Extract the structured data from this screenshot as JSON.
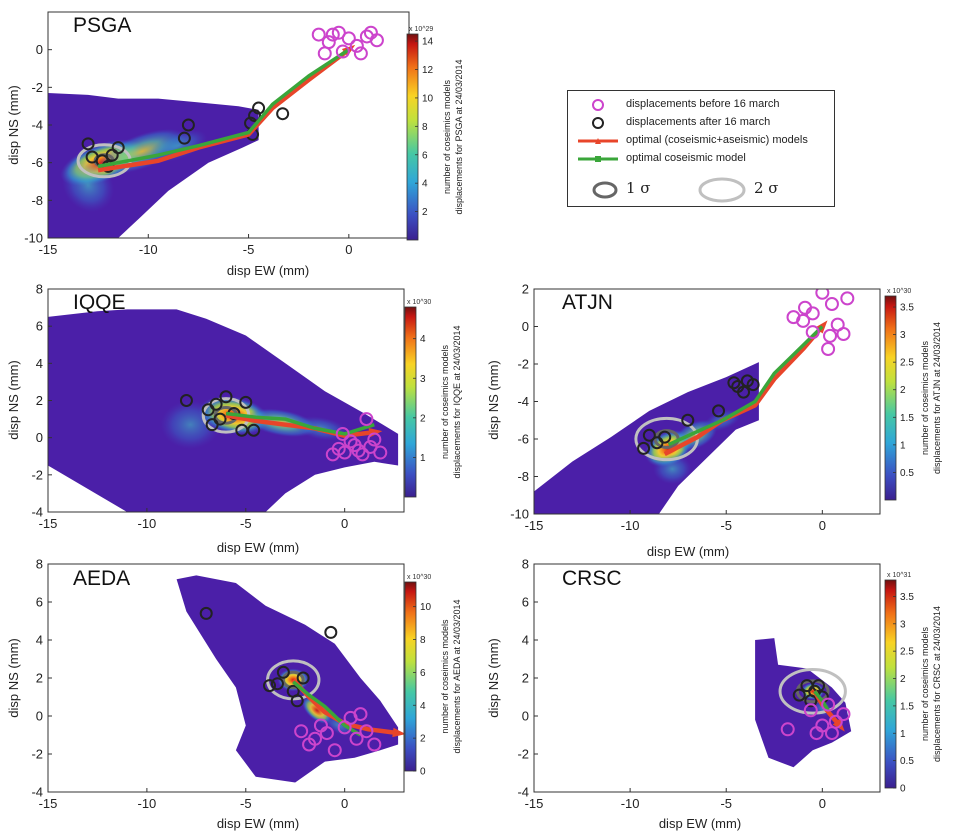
{
  "labels": {
    "xlabel": "disp EW (mm)",
    "ylabel": "disp NS (mm)",
    "cb_label_top": "number of coseimics models"
  },
  "legend": {
    "before": "displacements before 16 march",
    "after": "displacements after 16 march",
    "optimal_both": "optimal (coseismic+aseismic) models",
    "optimal_co": "optimal coseismic model",
    "sigma1": "1 σ",
    "sigma2": "2 σ"
  },
  "colors": {
    "before": "#cc44cc",
    "after": "#222222",
    "optimal_both": "#e8452a",
    "optimal_co": "#3aa63a",
    "sigma1": "#666666",
    "sigma2": "#c0c0c0",
    "density_low": "#4b1fa8"
  },
  "chart_data": [
    {
      "type": "heatmap",
      "station": "PSGA",
      "xlim": [
        -15,
        3
      ],
      "ylim": [
        -10,
        2
      ],
      "xticks": [
        -15,
        -10,
        -5,
        0
      ],
      "yticks": [
        -10,
        -8,
        -6,
        -4,
        -2,
        0
      ],
      "cb_ticks": [
        2,
        4,
        6,
        8,
        10,
        12,
        14
      ],
      "cb_max": 14.5,
      "cb_exp": "x 10^29",
      "cb_label_bottom": "displacements for PSGA at 24/03/2014",
      "before": [
        [
          -1.5,
          0.8
        ],
        [
          -1,
          0.4
        ],
        [
          -0.5,
          0.9
        ],
        [
          0,
          0.6
        ],
        [
          0.4,
          0.2
        ],
        [
          0.9,
          0.7
        ],
        [
          1.4,
          0.5
        ],
        [
          -1.2,
          -0.2
        ],
        [
          -0.3,
          -0.1
        ],
        [
          0.6,
          -0.2
        ],
        [
          1.1,
          0.9
        ],
        [
          -0.8,
          0.8
        ]
      ],
      "after": [
        [
          -12.8,
          -5.7
        ],
        [
          -12.3,
          -5.9
        ],
        [
          -11.8,
          -5.6
        ],
        [
          -13.0,
          -5.0
        ],
        [
          -11.5,
          -5.2
        ],
        [
          -12.0,
          -6.2
        ],
        [
          -8.0,
          -4.0
        ],
        [
          -8.2,
          -4.7
        ],
        [
          -4.7,
          -3.5
        ],
        [
          -4.9,
          -3.9
        ],
        [
          -4.5,
          -3.1
        ],
        [
          -4.8,
          -4.5
        ],
        [
          -3.3,
          -3.4
        ]
      ],
      "path_both": [
        [
          -12.5,
          -6.4
        ],
        [
          -9.5,
          -5.9
        ],
        [
          -7.5,
          -5.2
        ],
        [
          -5,
          -4.5
        ],
        [
          -3.8,
          -3.1
        ],
        [
          -2,
          -1.6
        ],
        [
          0,
          0
        ]
      ],
      "path_co": [
        [
          -12.5,
          -6.2
        ],
        [
          -9.5,
          -5.6
        ],
        [
          -7.5,
          -5.1
        ],
        [
          -5,
          -4.4
        ],
        [
          -3.8,
          -2.9
        ],
        [
          -2,
          -1.4
        ],
        [
          0,
          0
        ]
      ],
      "sigma_center": [
        -12.2,
        -5.9
      ],
      "sigma1": [
        0.45,
        0.32
      ],
      "sigma2": [
        1.3,
        0.85
      ],
      "density": [
        [
          -12.3,
          -6,
          2.2,
          1.0,
          1.0,
          20
        ],
        [
          -10.3,
          -5.4,
          2.3,
          0.9,
          0.6,
          20
        ],
        [
          -8.5,
          -5.1,
          1.5,
          0.7,
          0.3,
          20
        ],
        [
          -13,
          -7.2,
          1.2,
          1.5,
          0.4,
          40
        ]
      ],
      "support": [
        [
          -15,
          -2.3
        ],
        [
          -13,
          -2.4
        ],
        [
          -11.5,
          -2.6
        ],
        [
          -9.5,
          -2.6
        ],
        [
          -7.5,
          -2.8
        ],
        [
          -5.5,
          -3
        ],
        [
          -4.5,
          -3.2
        ],
        [
          -4.5,
          -4.8
        ],
        [
          -5.3,
          -5.2
        ],
        [
          -7,
          -6
        ],
        [
          -9,
          -7.5
        ],
        [
          -10.5,
          -9
        ],
        [
          -11.5,
          -10
        ],
        [
          -15,
          -10
        ]
      ]
    },
    {
      "type": "heatmap",
      "station": "IQQE",
      "xlim": [
        -15,
        3
      ],
      "ylim": [
        -4,
        8
      ],
      "xticks": [
        -15,
        -10,
        -5,
        0
      ],
      "yticks": [
        -4,
        -2,
        0,
        2,
        4,
        6,
        8
      ],
      "cb_ticks": [
        1,
        2,
        3,
        4
      ],
      "cb_max": 4.8,
      "cb_exp": "x 10^30",
      "cb_label_bottom": "displacements for IQQE at 24/03/2014",
      "before": [
        [
          -0.3,
          -0.6
        ],
        [
          0,
          -0.8
        ],
        [
          0.5,
          -0.4
        ],
        [
          0.9,
          -0.9
        ],
        [
          1.3,
          -0.5
        ],
        [
          1.8,
          -0.8
        ],
        [
          1.1,
          1.0
        ],
        [
          0.3,
          -0.2
        ],
        [
          -0.6,
          -0.9
        ],
        [
          1.5,
          -0.1
        ],
        [
          0.7,
          -0.7
        ],
        [
          -0.1,
          0.2
        ]
      ],
      "after": [
        [
          -8.0,
          2.0
        ],
        [
          -6.5,
          1.8
        ],
        [
          -6.0,
          2.2
        ],
        [
          -5.6,
          1.3
        ],
        [
          -6.7,
          0.7
        ],
        [
          -5.2,
          0.4
        ],
        [
          -4.6,
          0.4
        ],
        [
          -6.3,
          1.0
        ],
        [
          -6.9,
          1.5
        ],
        [
          -5.0,
          1.9
        ]
      ],
      "path_both": [
        [
          -6.0,
          1.2
        ],
        [
          -4.5,
          0.9
        ],
        [
          -3,
          0.7
        ],
        [
          -1.5,
          0.5
        ],
        [
          0,
          0.1
        ],
        [
          1.5,
          0.3
        ]
      ],
      "path_co": [
        [
          -6.0,
          1.3
        ],
        [
          -4.5,
          1.1
        ],
        [
          -3,
          1.0
        ],
        [
          -1.5,
          0.5
        ],
        [
          0,
          0.2
        ],
        [
          1.5,
          0.7
        ]
      ],
      "sigma_center": [
        -6.0,
        1.2
      ],
      "sigma1": [
        0.55,
        0.42
      ],
      "sigma2": [
        1.15,
        0.9
      ],
      "density": [
        [
          -5.6,
          1.2,
          1.8,
          1.0,
          1.0,
          -10
        ],
        [
          -3.2,
          0.8,
          1.8,
          0.7,
          0.7,
          -10
        ],
        [
          -1.2,
          0.5,
          1.4,
          0.6,
          0.35,
          -10
        ],
        [
          -7.8,
          0.7,
          1.5,
          1.3,
          0.25,
          0
        ]
      ],
      "support": [
        [
          -15,
          -0.5
        ],
        [
          -15,
          6.5
        ],
        [
          -12.5,
          6.8
        ],
        [
          -11,
          6.9
        ],
        [
          -8.5,
          6.9
        ],
        [
          -7,
          6.4
        ],
        [
          -5,
          5.5
        ],
        [
          -3,
          4
        ],
        [
          -1,
          2.5
        ],
        [
          1,
          1.3
        ],
        [
          2.7,
          0.2
        ],
        [
          2.7,
          -1.5
        ],
        [
          1.5,
          -1.3
        ],
        [
          0,
          -1.6
        ],
        [
          -1.5,
          -2
        ],
        [
          -3,
          -3
        ],
        [
          -4,
          -4
        ],
        [
          -11,
          -4
        ],
        [
          -15,
          -1.5
        ]
      ]
    },
    {
      "type": "heatmap",
      "station": "ATJN",
      "xlim": [
        -15,
        3
      ],
      "ylim": [
        -10,
        2
      ],
      "xticks": [
        -15,
        -10,
        -5,
        0
      ],
      "yticks": [
        -10,
        -8,
        -6,
        -4,
        -2,
        0,
        2
      ],
      "cb_ticks": [
        0.5,
        1,
        1.5,
        2,
        2.5,
        3,
        3.5
      ],
      "cb_max": 3.7,
      "cb_exp": "x 10^30",
      "cb_label_bottom": "displacements for ATJN at 24/03/2014",
      "before": [
        [
          -1.5,
          0.5
        ],
        [
          -1,
          0.3
        ],
        [
          -0.5,
          0.7
        ],
        [
          0,
          1.8
        ],
        [
          0.5,
          1.2
        ],
        [
          0.8,
          0.1
        ],
        [
          1.1,
          -0.4
        ],
        [
          0.4,
          -0.5
        ],
        [
          -0.5,
          -0.3
        ],
        [
          0.3,
          -1.2
        ],
        [
          1.3,
          1.5
        ],
        [
          -0.9,
          1.0
        ]
      ],
      "after": [
        [
          -9.0,
          -5.8
        ],
        [
          -8.6,
          -6.2
        ],
        [
          -8.2,
          -5.9
        ],
        [
          -9.3,
          -6.5
        ],
        [
          -7.0,
          -5.0
        ],
        [
          -5.4,
          -4.5
        ],
        [
          -4.4,
          -3.2
        ],
        [
          -4.6,
          -3.0
        ],
        [
          -4.1,
          -3.5
        ],
        [
          -3.6,
          -3.1
        ],
        [
          -3.9,
          -2.9
        ]
      ],
      "path_both": [
        [
          -8.2,
          -6.8
        ],
        [
          -6.5,
          -5.9
        ],
        [
          -5.2,
          -5.0
        ],
        [
          -3.5,
          -4.2
        ],
        [
          -2.5,
          -2.8
        ],
        [
          -1,
          -1.2
        ],
        [
          0,
          0
        ]
      ],
      "path_co": [
        [
          -8.0,
          -6.3
        ],
        [
          -6.5,
          -5.6
        ],
        [
          -5.2,
          -5.0
        ],
        [
          -3.5,
          -4.0
        ],
        [
          -2.5,
          -2.5
        ],
        [
          -1,
          -1.0
        ],
        [
          0,
          0
        ]
      ],
      "sigma_center": [
        -8.1,
        -6.0
      ],
      "sigma1": [
        0.6,
        0.45
      ],
      "sigma2": [
        1.6,
        1.1
      ],
      "density": [
        [
          -8.0,
          -6.5,
          1.3,
          0.9,
          1.0,
          25
        ],
        [
          -6.6,
          -5.8,
          1.2,
          0.7,
          0.55,
          25
        ],
        [
          -7.8,
          -7.6,
          1.0,
          0.8,
          0.35,
          0
        ],
        [
          -5.2,
          -5.0,
          1.0,
          0.5,
          0.25,
          20
        ]
      ],
      "support": [
        [
          -15,
          -8.8
        ],
        [
          -13,
          -7.2
        ],
        [
          -11,
          -5.9
        ],
        [
          -9,
          -4.5
        ],
        [
          -7,
          -3.5
        ],
        [
          -5,
          -2.7
        ],
        [
          -3.3,
          -1.9
        ],
        [
          -3.3,
          -5.0
        ],
        [
          -4.5,
          -5.5
        ],
        [
          -6,
          -7
        ],
        [
          -7.5,
          -8.5
        ],
        [
          -8.5,
          -10
        ],
        [
          -15,
          -10
        ]
      ]
    },
    {
      "type": "heatmap",
      "station": "AEDA",
      "xlim": [
        -15,
        3
      ],
      "ylim": [
        -4,
        8
      ],
      "xticks": [
        -15,
        -10,
        -5,
        0
      ],
      "yticks": [
        -4,
        -2,
        0,
        2,
        4,
        6,
        8
      ],
      "cb_ticks": [
        0,
        2,
        4,
        6,
        8,
        10
      ],
      "cb_max": 11.5,
      "cb_exp": "x 10^30",
      "cb_label_bottom": "displacements for AEDA at 24/03/2014",
      "before": [
        [
          -2.2,
          -0.8
        ],
        [
          -1.8,
          -1.5
        ],
        [
          -1.2,
          -0.5
        ],
        [
          -0.5,
          -1.8
        ],
        [
          0,
          -0.6
        ],
        [
          0.6,
          -1.2
        ],
        [
          1.1,
          -0.8
        ],
        [
          1.5,
          -1.5
        ],
        [
          -0.9,
          -0.9
        ],
        [
          0.3,
          -0.1
        ],
        [
          0.8,
          0.1
        ],
        [
          -1.5,
          -1.2
        ]
      ],
      "after": [
        [
          -7.0,
          5.4
        ],
        [
          -0.7,
          4.4
        ],
        [
          -3.8,
          1.6
        ],
        [
          -3.1,
          2.3
        ],
        [
          -2.6,
          1.3
        ],
        [
          -2.1,
          2.0
        ],
        [
          -3.4,
          1.7
        ],
        [
          -2.4,
          0.8
        ]
      ],
      "path_both": [
        [
          -2.6,
          1.9
        ],
        [
          -1.8,
          1.0
        ],
        [
          -1,
          0.2
        ],
        [
          0,
          -0.4
        ],
        [
          1.2,
          -0.7
        ],
        [
          2.7,
          -0.9
        ]
      ],
      "path_co": [
        [
          -2.6,
          1.8
        ],
        [
          -1.8,
          1.1
        ],
        [
          -1,
          0.5
        ],
        [
          0,
          -0.5
        ],
        [
          0.8,
          -1.0
        ]
      ],
      "sigma_center": [
        -2.6,
        1.9
      ],
      "sigma1": [
        0.5,
        0.4
      ],
      "sigma2": [
        1.3,
        1.0
      ],
      "density": [
        [
          -2.6,
          1.9,
          0.8,
          0.6,
          1.0,
          0
        ],
        [
          -1.4,
          0.3,
          0.9,
          0.5,
          0.8,
          -40
        ],
        [
          -0.3,
          -0.5,
          0.8,
          0.4,
          0.35,
          -30
        ]
      ],
      "support": [
        [
          -8.5,
          7.2
        ],
        [
          -7.5,
          7.4
        ],
        [
          -5.5,
          7
        ],
        [
          -4,
          5.8
        ],
        [
          -2,
          4.8
        ],
        [
          -0.5,
          3.8
        ],
        [
          0.8,
          2
        ],
        [
          1.8,
          0.8
        ],
        [
          2.7,
          -0.6
        ],
        [
          2.7,
          -1.5
        ],
        [
          1.8,
          -1.8
        ],
        [
          0.5,
          -2.2
        ],
        [
          -1,
          -2.4
        ],
        [
          -2.5,
          -3.5
        ],
        [
          -4.5,
          -3.2
        ],
        [
          -5.5,
          -1.8
        ],
        [
          -5,
          -0.5
        ],
        [
          -5.5,
          1.5
        ],
        [
          -6.5,
          3
        ],
        [
          -8,
          5.5
        ]
      ]
    },
    {
      "type": "heatmap",
      "station": "CRSC",
      "xlim": [
        -15,
        3
      ],
      "ylim": [
        -4,
        8
      ],
      "xticks": [
        -15,
        -10,
        -5,
        0
      ],
      "yticks": [
        -4,
        -2,
        0,
        2,
        4,
        6,
        8
      ],
      "cb_ticks": [
        0,
        0.5,
        1,
        1.5,
        2,
        2.5,
        3,
        3.5
      ],
      "cb_max": 3.8,
      "cb_exp": "x 10^31",
      "cb_label_bottom": "displacements for CRSC at 24/03/2014",
      "before": [
        [
          -1.8,
          -0.7
        ],
        [
          -0.6,
          0.3
        ],
        [
          0,
          -0.5
        ],
        [
          0.5,
          -0.9
        ],
        [
          1.1,
          0.1
        ],
        [
          0.7,
          -0.3
        ],
        [
          -0.3,
          -0.9
        ],
        [
          0.3,
          0.6
        ]
      ],
      "after": [
        [
          -1.2,
          1.1
        ],
        [
          -0.8,
          1.6
        ],
        [
          -0.4,
          1.3
        ],
        [
          0,
          1.0
        ],
        [
          -0.6,
          0.8
        ],
        [
          -0.2,
          1.6
        ]
      ],
      "path_both": [
        [
          -0.4,
          1.3
        ],
        [
          0,
          0.6
        ],
        [
          0.4,
          0.1
        ],
        [
          0.9,
          -0.5
        ]
      ],
      "path_co": [
        [
          -0.4,
          1.3
        ],
        [
          0,
          0.8
        ],
        [
          0.3,
          0.3
        ]
      ],
      "sigma_center": [
        -0.5,
        1.3
      ],
      "sigma1": [
        0.8,
        0.55
      ],
      "sigma2": [
        1.7,
        1.15
      ],
      "density": [
        [
          -0.5,
          1.3,
          0.6,
          0.45,
          1.0,
          0
        ],
        [
          0,
          0.4,
          0.5,
          0.4,
          0.35,
          -30
        ]
      ],
      "support": [
        [
          -3.5,
          4.0
        ],
        [
          -2.5,
          4.1
        ],
        [
          -2.3,
          2.7
        ],
        [
          -0.8,
          2.5
        ],
        [
          0.5,
          1.5
        ],
        [
          1.2,
          0.7
        ],
        [
          1.5,
          -0.8
        ],
        [
          0.5,
          -1.4
        ],
        [
          -0.5,
          -1.8
        ],
        [
          -1.5,
          -2.7
        ],
        [
          -2.8,
          -2.2
        ],
        [
          -3.5,
          -0.2
        ]
      ]
    }
  ]
}
